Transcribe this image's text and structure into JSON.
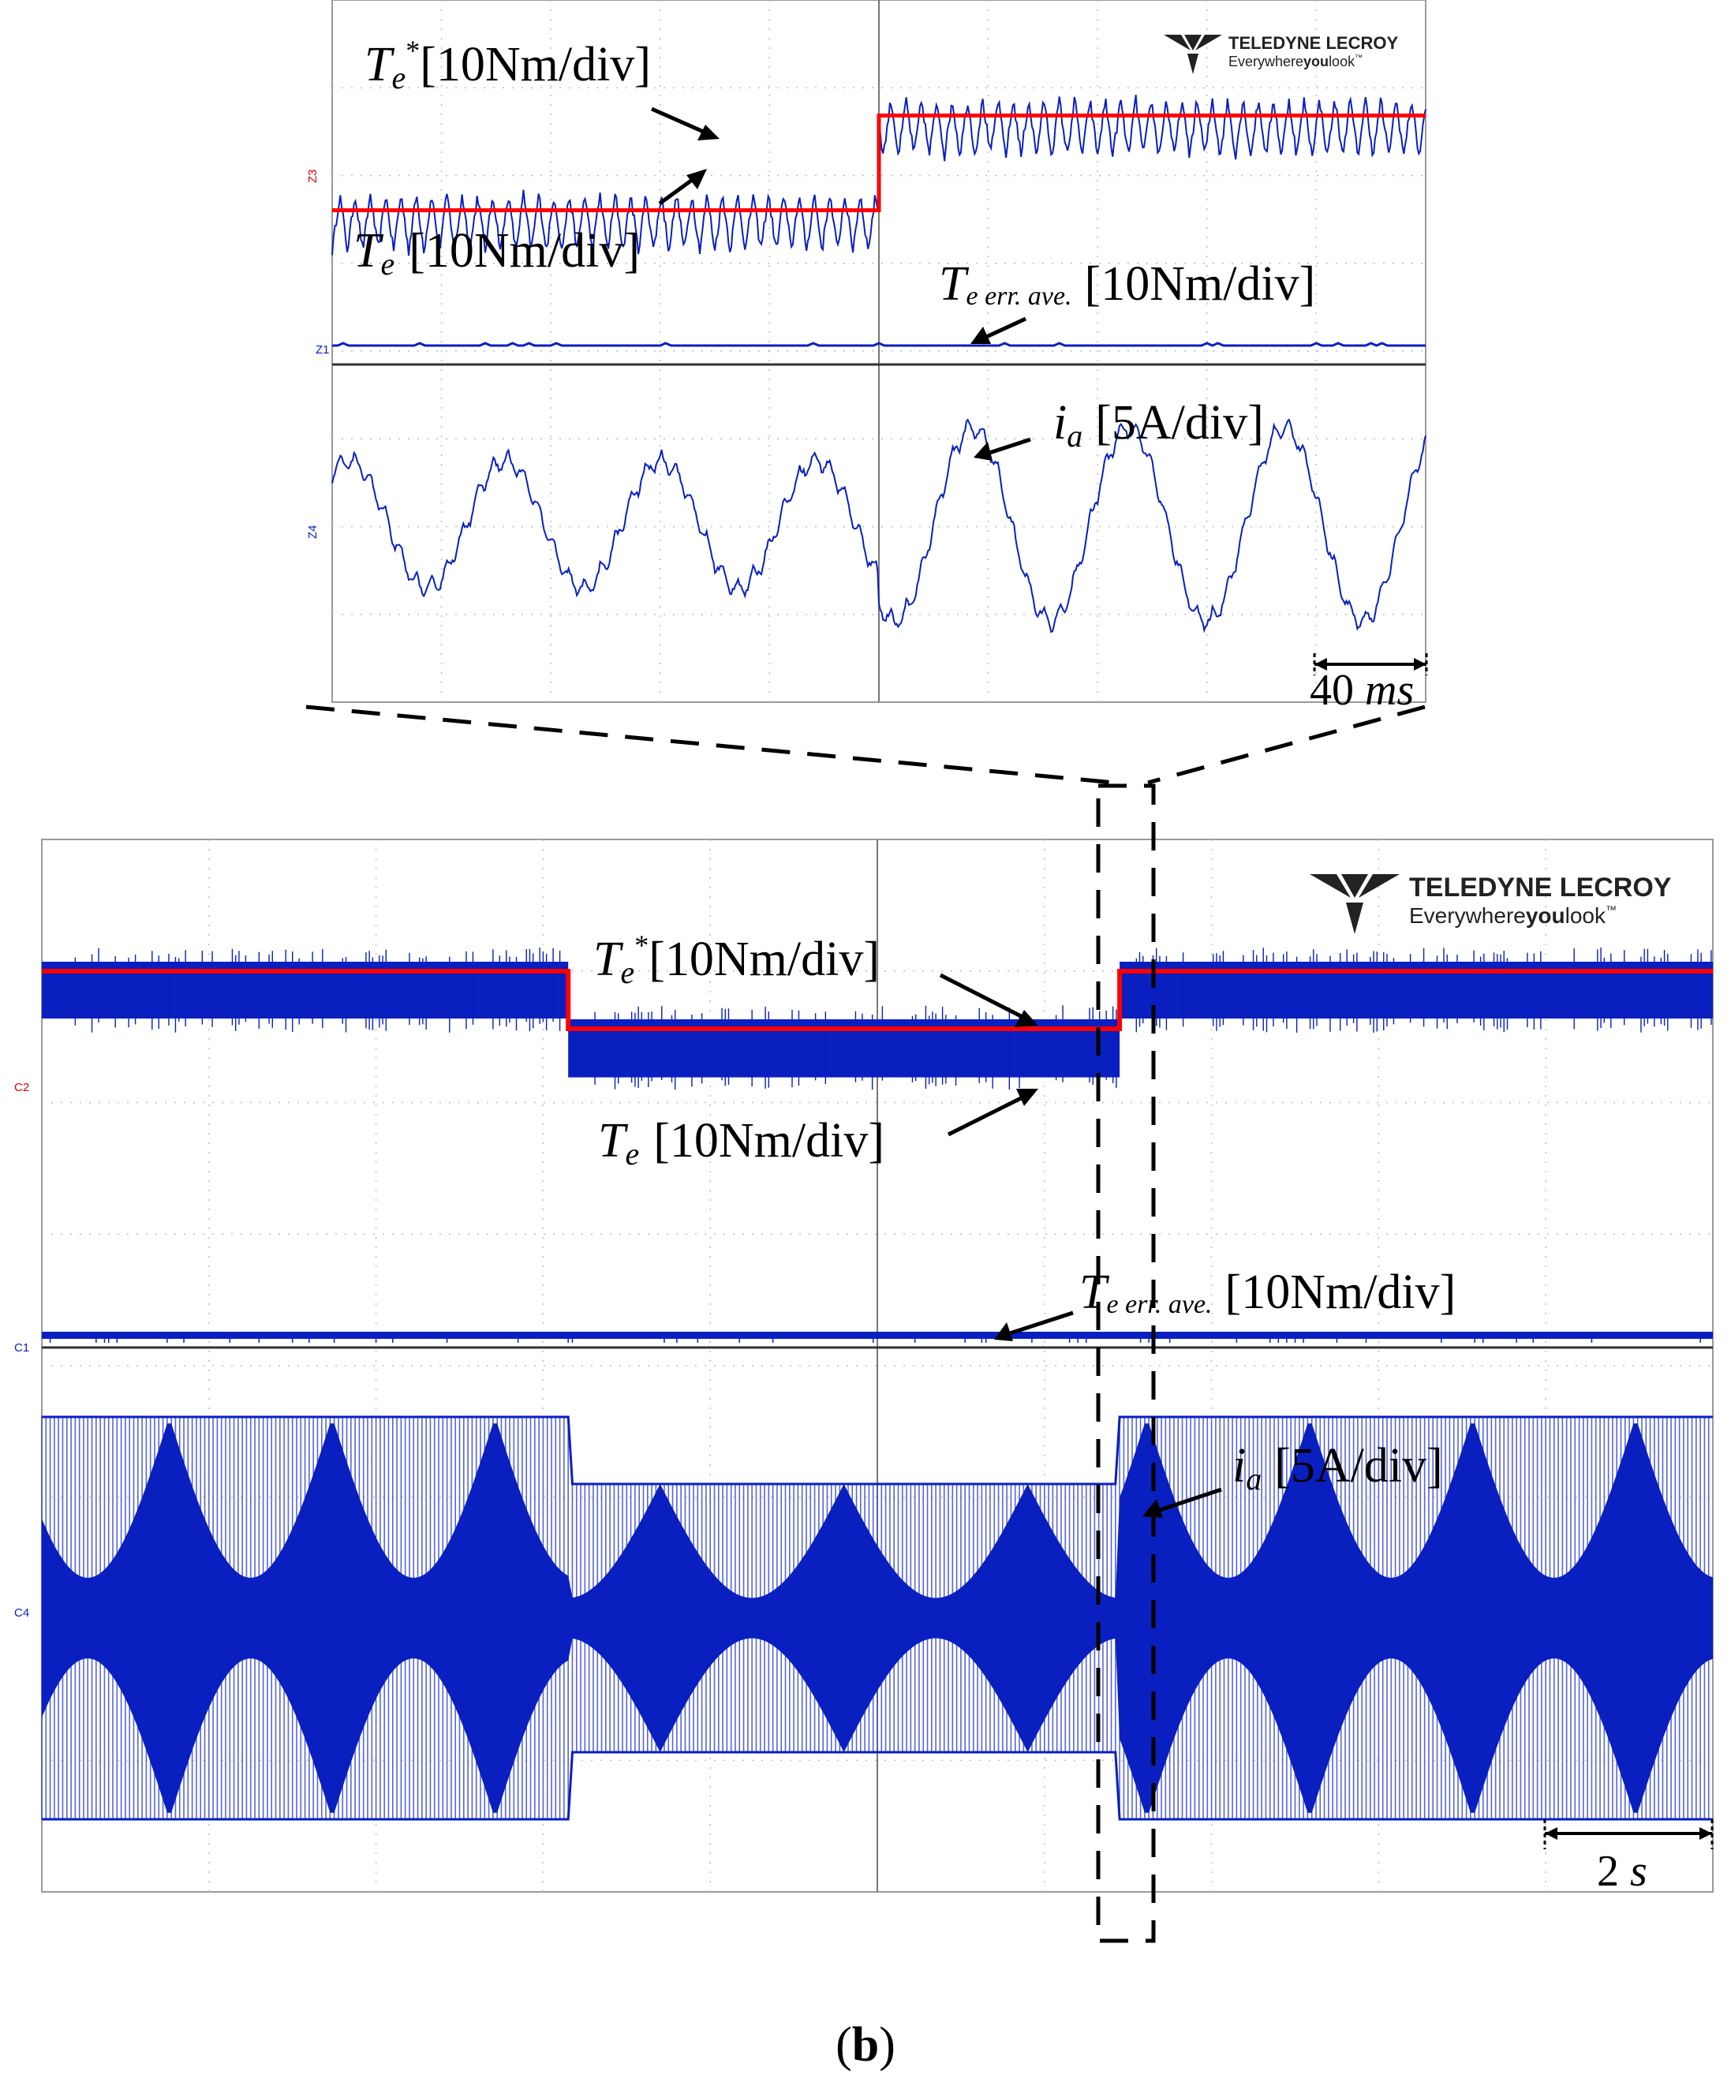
{
  "brand": {
    "name": "TELEDYNE LECROY",
    "tagline_prefix": "Everywhere",
    "tagline_bold": "you",
    "tagline_suffix": "look",
    "tm": "™"
  },
  "caption": {
    "open": "(",
    "letter": "b",
    "close": ")"
  },
  "colors": {
    "reference": "#ff0000",
    "trace": "#0a1fbf",
    "grid": "#bdbdbd"
  },
  "zoom_panel": {
    "channels": [
      "Z3",
      "Z1",
      "Z4"
    ],
    "time_per_div_label": {
      "value": "40",
      "unit": "ms"
    },
    "labels": {
      "te_ref": {
        "sym": "T",
        "sub": "e",
        "sup": "*",
        "scale": "[10Nm/div]"
      },
      "te": {
        "sym": "T",
        "sub": "e",
        "scale": "[10Nm/div]"
      },
      "te_err": {
        "sym": "T",
        "sub": "e err. ave.",
        "scale": "[10Nm/div]"
      },
      "ia": {
        "sym": "i",
        "sub": "a",
        "scale": "[5A/div]"
      }
    }
  },
  "main_panel": {
    "channels": [
      "C2",
      "C1",
      "C4"
    ],
    "time_per_div_label": {
      "value": "2",
      "unit": "s"
    },
    "labels": {
      "te_ref": {
        "sym": "T",
        "sub": "e",
        "sup": "*",
        "scale": "[10Nm/div]"
      },
      "te": {
        "sym": "T",
        "sub": "e",
        "scale": "[10Nm/div]"
      },
      "te_err": {
        "sym": "T",
        "sub": "e err. ave.",
        "scale": "[10Nm/div]"
      },
      "ia": {
        "sym": "i",
        "sub": "a",
        "scale": "[5A/div]"
      }
    }
  },
  "chart_data": [
    {
      "type": "line",
      "panel": "zoom",
      "x_unit": "ms",
      "x_range": [
        0,
        400
      ],
      "grid": true,
      "series": [
        {
          "name": "Te*",
          "x": [
            0,
            200,
            200,
            400
          ],
          "y": [
            1.0,
            1.0,
            1.7,
            1.7
          ],
          "unit": "div"
        },
        {
          "name": "Te",
          "mean_before": 0.85,
          "mean_after": 1.55,
          "ripple_div": 0.3,
          "unit": "div"
        },
        {
          "name": "Te err. ave.",
          "mean": 0.0,
          "unit": "div"
        },
        {
          "name": "ia",
          "amplitude_before": 1.0,
          "amplitude_after": 1.5,
          "period_ms": 57,
          "unit": "div"
        }
      ]
    },
    {
      "type": "line",
      "panel": "main",
      "x_unit": "s",
      "x_range": [
        0,
        20
      ],
      "grid": true,
      "series": [
        {
          "name": "Te*",
          "x": [
            0,
            6.3,
            6.3,
            12.9,
            12.9,
            20
          ],
          "y": [
            1.7,
            1.7,
            1.0,
            1.0,
            1.7,
            1.7
          ],
          "unit": "div"
        },
        {
          "name": "Te",
          "band_div": 0.8,
          "unit": "div"
        },
        {
          "name": "Te err. ave.",
          "mean": 0.0,
          "unit": "div"
        },
        {
          "name": "ia",
          "amplitude_high": 1.5,
          "amplitude_low": 1.0,
          "low_interval_s": [
            6.3,
            12.9
          ],
          "unit": "div"
        }
      ]
    }
  ]
}
